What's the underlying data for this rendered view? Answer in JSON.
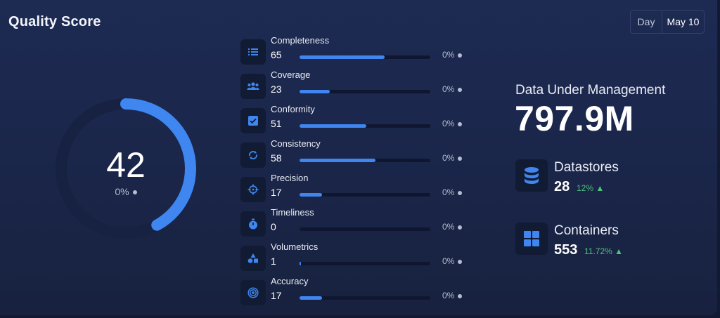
{
  "header": {
    "title": "Quality Score"
  },
  "period": {
    "day_label": "Day",
    "date_label": "May 10"
  },
  "score": {
    "value": "42",
    "percent": 42,
    "delta": "0%"
  },
  "metrics": [
    {
      "label": "Completeness",
      "value": "65",
      "percent": 65,
      "delta": "0%",
      "icon": "list-icon"
    },
    {
      "label": "Coverage",
      "value": "23",
      "percent": 23,
      "delta": "0%",
      "icon": "people-icon"
    },
    {
      "label": "Conformity",
      "value": "51",
      "percent": 51,
      "delta": "0%",
      "icon": "checkbox-icon"
    },
    {
      "label": "Consistency",
      "value": "58",
      "percent": 58,
      "delta": "0%",
      "icon": "sync-icon"
    },
    {
      "label": "Precision",
      "value": "17",
      "percent": 17,
      "delta": "0%",
      "icon": "crosshair-icon"
    },
    {
      "label": "Timeliness",
      "value": "0",
      "percent": 0,
      "delta": "0%",
      "icon": "stopwatch-icon"
    },
    {
      "label": "Volumetrics",
      "value": "1",
      "percent": 1,
      "delta": "0%",
      "icon": "shapes-icon"
    },
    {
      "label": "Accuracy",
      "value": "17",
      "percent": 17,
      "delta": "0%",
      "icon": "target-icon"
    }
  ],
  "summary": {
    "title": "Data Under Management",
    "value": "797.9M",
    "datastores": {
      "label": "Datastores",
      "value": "28",
      "change": "12%"
    },
    "containers": {
      "label": "Containers",
      "value": "553",
      "change": "11.72%"
    }
  },
  "colors": {
    "accent": "#3f86f0",
    "positive": "#4fc27d",
    "track": "#0f1730"
  }
}
